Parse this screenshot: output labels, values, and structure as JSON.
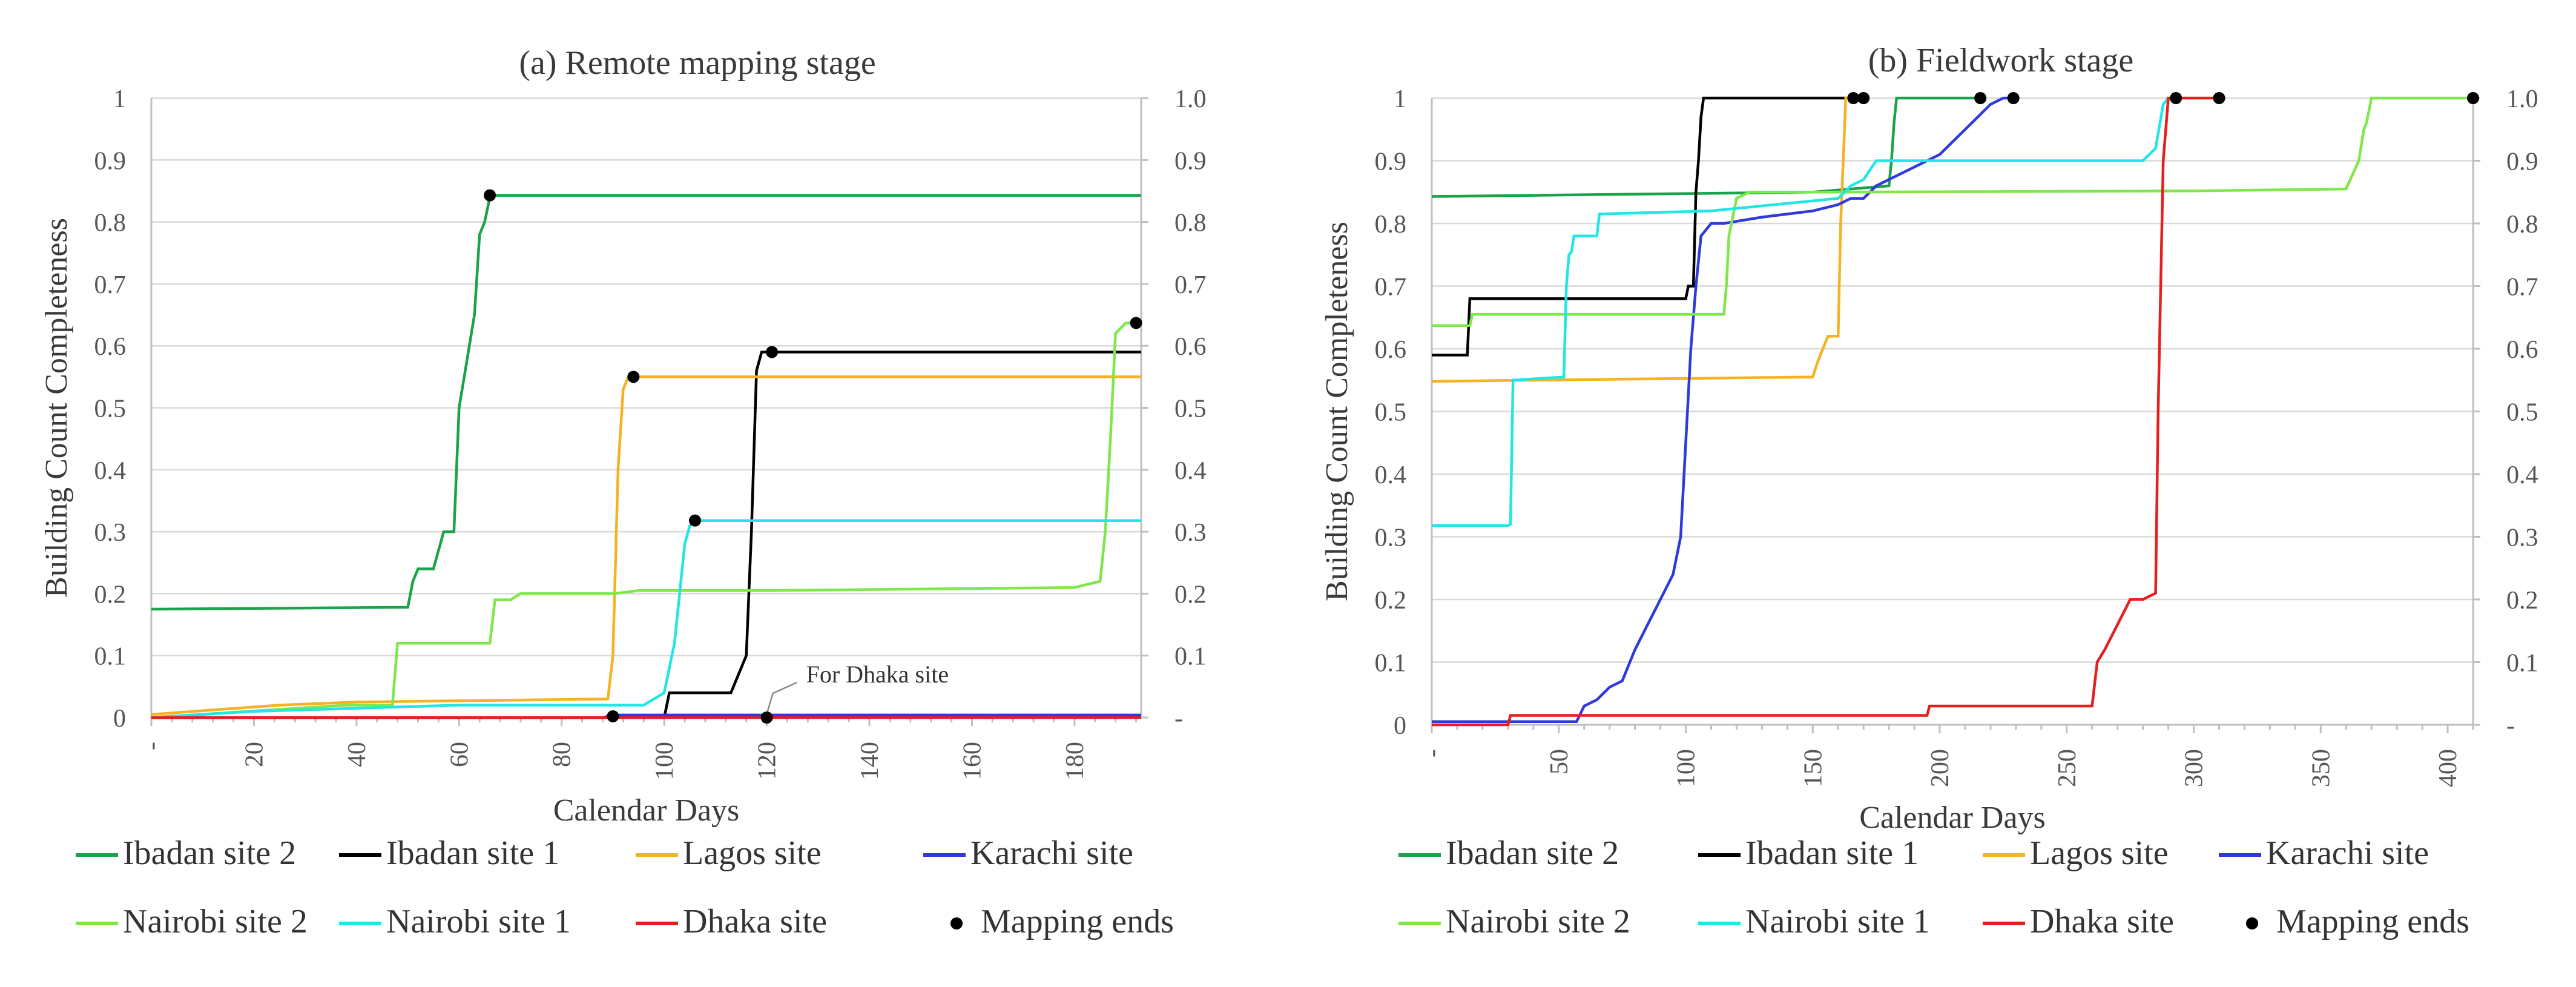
{
  "chart_data": [
    {
      "type": "line",
      "title": "(a) Remote mapping stage",
      "xlabel": "Calendar Days",
      "ylabel": "Building Count Completeness",
      "xlim": [
        0,
        193
      ],
      "ylim": [
        0,
        1
      ],
      "x_tick_labels": [
        "-",
        "20",
        "40",
        "60",
        "80",
        "100",
        "120",
        "140",
        "160",
        "180"
      ],
      "y_tick_labels": [
        "0",
        "0.1",
        "0.2",
        "0.3",
        "0.4",
        "0.5",
        "0.6",
        "0.7",
        "0.8",
        "0.9",
        "1"
      ],
      "y2_tick_labels": [
        "-",
        "0.1",
        "0.2",
        "0.3",
        "0.4",
        "0.5",
        "0.6",
        "0.7",
        "0.8",
        "0.9",
        "1.0"
      ],
      "annotation": "For Dhaka site",
      "grid": true,
      "series": [
        {
          "name": "Ibadan site 2",
          "color": "#1aa34a",
          "x": [
            0,
            50,
            51,
            52,
            55,
            56,
            57,
            58,
            59,
            60,
            61,
            62,
            63,
            64,
            65,
            66,
            67,
            193
          ],
          "y": [
            0.175,
            0.178,
            0.22,
            0.24,
            0.24,
            0.27,
            0.3,
            0.3,
            0.3,
            0.5,
            0.55,
            0.6,
            0.65,
            0.78,
            0.8,
            0.84,
            0.843,
            0.843
          ]
        },
        {
          "name": "Ibadan site 1",
          "color": "#000000",
          "x": [
            0,
            100,
            101,
            112,
            113,
            116,
            117,
            118,
            119,
            120,
            193
          ],
          "y": [
            0,
            0,
            0.04,
            0.04,
            0.04,
            0.1,
            0.3,
            0.56,
            0.59,
            0.59,
            0.59
          ]
        },
        {
          "name": "Lagos site",
          "color": "#f5b324",
          "x": [
            0,
            25,
            40,
            89,
            90,
            91,
            92,
            93,
            94,
            193
          ],
          "y": [
            0.005,
            0.02,
            0.025,
            0.03,
            0.1,
            0.4,
            0.53,
            0.55,
            0.55,
            0.55
          ]
        },
        {
          "name": "Karachi site",
          "color": "#2e3adb",
          "x": [
            0,
            88,
            90,
            193
          ],
          "y": [
            0,
            0,
            0.004,
            0.004
          ]
        },
        {
          "name": "Nairobi site 2",
          "color": "#7ee84a",
          "x": [
            0,
            38,
            47,
            48,
            60,
            66,
            67,
            70,
            72,
            90,
            95,
            120,
            180,
            185,
            186,
            187,
            188,
            190,
            193
          ],
          "y": [
            0,
            0.02,
            0.02,
            0.12,
            0.12,
            0.12,
            0.19,
            0.19,
            0.2,
            0.2,
            0.205,
            0.205,
            0.21,
            0.22,
            0.3,
            0.45,
            0.62,
            0.637,
            0.637
          ]
        },
        {
          "name": "Nairobi site 1",
          "color": "#22e6e6",
          "x": [
            0,
            20,
            60,
            96,
            100,
            101,
            102,
            103,
            104,
            105,
            106,
            193
          ],
          "y": [
            0,
            0.01,
            0.02,
            0.02,
            0.04,
            0.08,
            0.12,
            0.2,
            0.28,
            0.31,
            0.318,
            0.318
          ]
        },
        {
          "name": "Dhaka site",
          "color": "#e61e1e",
          "x": [
            0,
            193
          ],
          "y": [
            0,
            0
          ]
        }
      ],
      "mapping_ends": [
        {
          "x": 66,
          "y": 0.843
        },
        {
          "x": 94,
          "y": 0.55
        },
        {
          "x": 106,
          "y": 0.318
        },
        {
          "x": 121,
          "y": 0.59
        },
        {
          "x": 192,
          "y": 0.637
        },
        {
          "x": 90,
          "y": 0.002
        },
        {
          "x": 120,
          "y": 0
        }
      ]
    },
    {
      "type": "line",
      "title": "(b) Fieldwork stage",
      "xlabel": "Calendar Days",
      "ylabel": "Building Count Completeness",
      "xlim": [
        0,
        410
      ],
      "ylim": [
        0,
        1
      ],
      "x_tick_labels": [
        "-",
        "50",
        "100",
        "150",
        "200",
        "250",
        "300",
        "350",
        "400"
      ],
      "y_tick_labels": [
        "0",
        "0.1",
        "0.2",
        "0.3",
        "0.4",
        "0.5",
        "0.6",
        "0.7",
        "0.8",
        "0.9",
        "1"
      ],
      "y2_tick_labels": [
        "-",
        "0.1",
        "0.2",
        "0.3",
        "0.4",
        "0.5",
        "0.6",
        "0.7",
        "0.8",
        "0.9",
        "1.0"
      ],
      "grid": true,
      "series": [
        {
          "name": "Ibadan site 2",
          "color": "#1aa34a",
          "x": [
            0,
            150,
            180,
            181,
            182,
            183,
            190,
            216
          ],
          "y": [
            0.843,
            0.85,
            0.86,
            0.9,
            0.96,
            1.0,
            1.0,
            1.0
          ]
        },
        {
          "name": "Ibadan site 1",
          "color": "#000000",
          "x": [
            0,
            14,
            15,
            100,
            101,
            103,
            104,
            105,
            106,
            107,
            165,
            166,
            170
          ],
          "y": [
            0.59,
            0.59,
            0.68,
            0.68,
            0.7,
            0.7,
            0.85,
            0.9,
            0.97,
            1.0,
            1.0,
            1.0,
            1.0
          ]
        },
        {
          "name": "Lagos site",
          "color": "#f5b324",
          "x": [
            0,
            150,
            152,
            154,
            156,
            160,
            161,
            162,
            163,
            164,
            167
          ],
          "y": [
            0.548,
            0.555,
            0.58,
            0.6,
            0.62,
            0.62,
            0.8,
            0.9,
            1.0,
            1.0,
            1.0
          ]
        },
        {
          "name": "Karachi site",
          "color": "#2e3adb",
          "x": [
            0,
            57,
            60,
            65,
            70,
            75,
            80,
            85,
            90,
            95,
            98,
            100,
            102,
            104,
            106,
            110,
            115,
            130,
            150,
            160,
            165,
            170,
            175,
            180,
            190,
            200,
            210,
            215,
            220,
            225,
            229
          ],
          "y": [
            0.005,
            0.005,
            0.03,
            0.04,
            0.06,
            0.07,
            0.12,
            0.16,
            0.2,
            0.24,
            0.3,
            0.45,
            0.6,
            0.7,
            0.78,
            0.8,
            0.8,
            0.81,
            0.82,
            0.83,
            0.84,
            0.84,
            0.86,
            0.87,
            0.89,
            0.91,
            0.95,
            0.97,
            0.99,
            1.0,
            1.0
          ]
        },
        {
          "name": "Nairobi site 2",
          "color": "#7ee84a",
          "x": [
            0,
            15,
            16,
            115,
            116,
            117,
            118,
            120,
            125,
            160,
            300,
            360,
            365,
            367,
            368,
            370,
            410
          ],
          "y": [
            0.637,
            0.637,
            0.655,
            0.655,
            0.7,
            0.78,
            0.8,
            0.84,
            0.85,
            0.85,
            0.852,
            0.855,
            0.9,
            0.95,
            0.96,
            1.0,
            1.0
          ]
        },
        {
          "name": "Nairobi site 1",
          "color": "#22e6e6",
          "x": [
            0,
            30,
            31,
            32,
            52,
            53,
            54,
            55,
            56,
            65,
            66,
            110,
            160,
            165,
            170,
            175,
            280,
            285,
            288,
            290
          ],
          "y": [
            0.318,
            0.318,
            0.32,
            0.55,
            0.555,
            0.7,
            0.75,
            0.755,
            0.78,
            0.78,
            0.815,
            0.82,
            0.84,
            0.86,
            0.87,
            0.9,
            0.9,
            0.92,
            0.99,
            1.0
          ]
        },
        {
          "name": "Dhaka site",
          "color": "#e61e1e",
          "x": [
            0,
            30,
            31,
            195,
            196,
            260,
            262,
            265,
            270,
            275,
            280,
            285,
            286,
            288,
            290,
            295,
            310
          ],
          "y": [
            0,
            0,
            0.015,
            0.015,
            0.03,
            0.03,
            0.1,
            0.12,
            0.16,
            0.2,
            0.2,
            0.21,
            0.5,
            0.9,
            1.0,
            1.0,
            1.0
          ]
        }
      ],
      "mapping_ends": [
        {
          "x": 166,
          "y": 1.0
        },
        {
          "x": 170,
          "y": 1.0
        },
        {
          "x": 216,
          "y": 1.0
        },
        {
          "x": 229,
          "y": 1.0
        },
        {
          "x": 293,
          "y": 1.0
        },
        {
          "x": 310,
          "y": 1.0
        },
        {
          "x": 410,
          "y": 1.0
        }
      ]
    }
  ],
  "legend": {
    "items": [
      {
        "label": "Ibadan site 2",
        "color": "#1aa34a",
        "marker": "line"
      },
      {
        "label": "Ibadan site 1",
        "color": "#000000",
        "marker": "line"
      },
      {
        "label": "Lagos site",
        "color": "#f5b324",
        "marker": "line"
      },
      {
        "label": "Karachi site",
        "color": "#2e3adb",
        "marker": "line"
      },
      {
        "label": "Nairobi site 2",
        "color": "#7ee84a",
        "marker": "line"
      },
      {
        "label": "Nairobi site 1",
        "color": "#22e6e6",
        "marker": "line"
      },
      {
        "label": "Dhaka site",
        "color": "#e61e1e",
        "marker": "line"
      },
      {
        "label": "Mapping ends",
        "color": "#000000",
        "marker": "dot"
      }
    ]
  }
}
